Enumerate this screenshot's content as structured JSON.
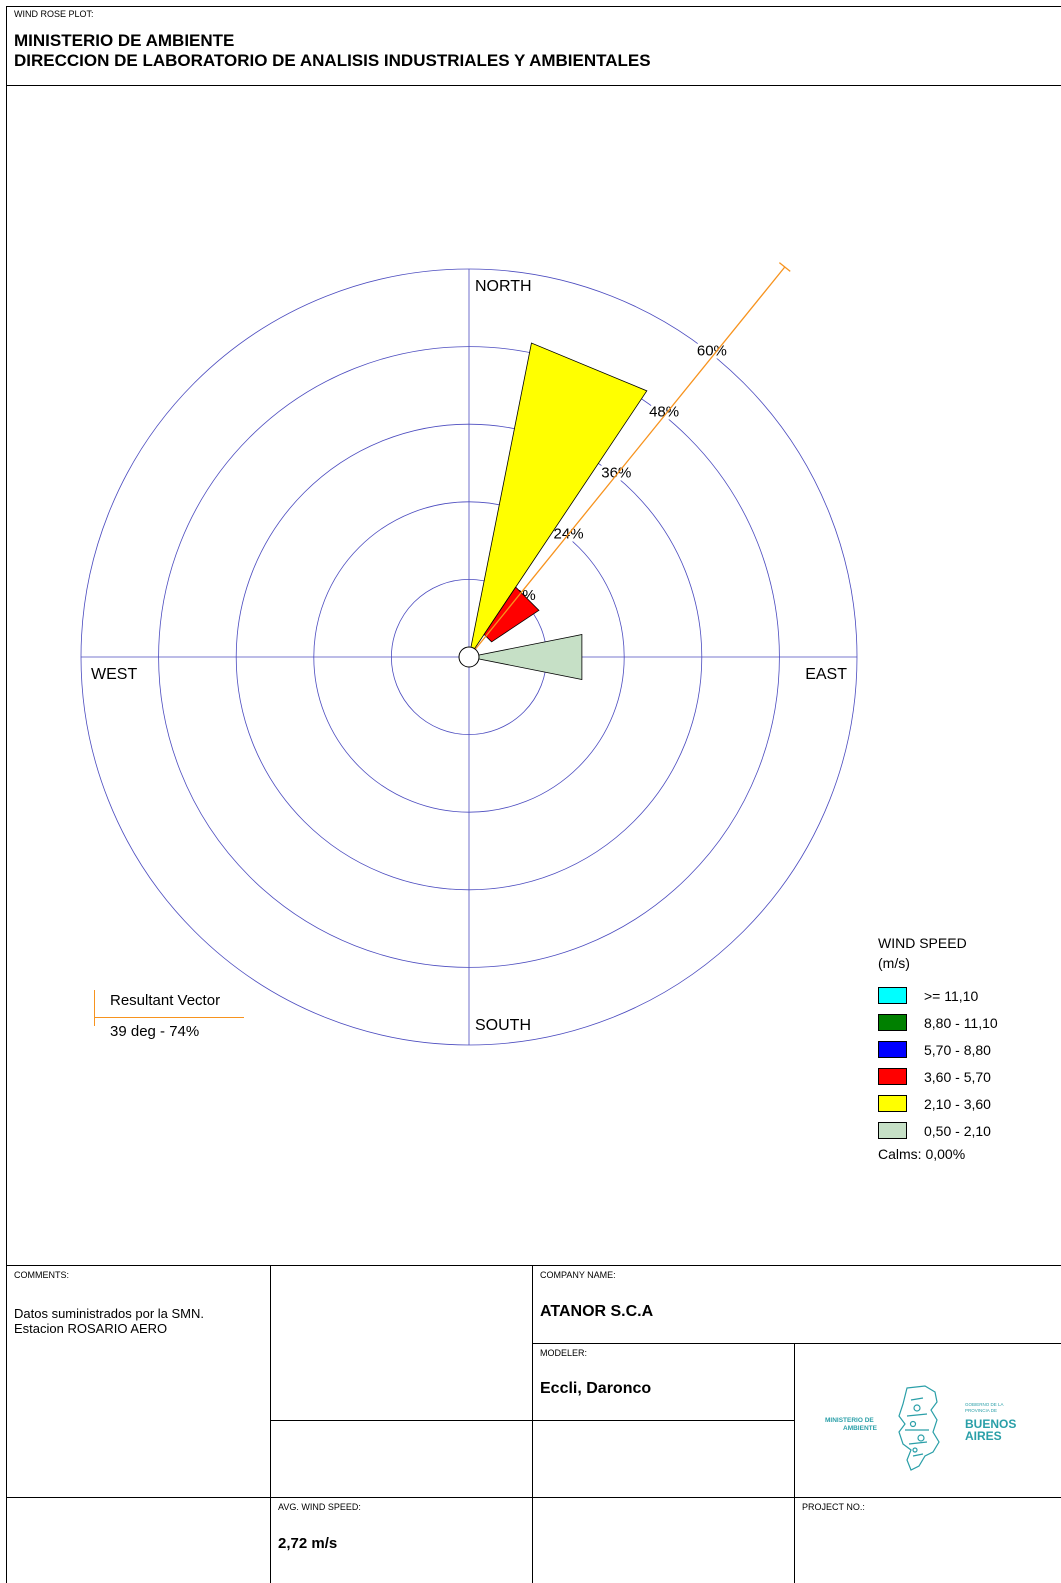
{
  "header": {
    "small_label": "WIND ROSE PLOT:",
    "title_line1": "MINISTERIO DE AMBIENTE",
    "title_line2": "DIRECCION DE LABORATORIO DE ANALISIS INDUSTRIALES Y AMBIENTALES"
  },
  "chart_data": {
    "type": "wind_rose",
    "directions": {
      "north": "NORTH",
      "south": "SOUTH",
      "east": "EAST",
      "west": "WEST"
    },
    "rings": [
      12,
      24,
      36,
      48,
      60
    ],
    "ring_labels": [
      "12%",
      "24%",
      "36%",
      "48%",
      "60%"
    ],
    "ring_label_angle_deg": 38,
    "max_percent": 60,
    "petals": [
      {
        "dir_deg": 22.5,
        "width_deg": 22.5,
        "segments": [
          {
            "bin": "2,10 - 3,60",
            "from": 0,
            "to": 49.5
          }
        ]
      },
      {
        "dir_deg": 45,
        "width_deg": 22.5,
        "segments": [
          {
            "bin": "3,60 - 5,70",
            "from": 4.2,
            "to": 13.0
          }
        ]
      },
      {
        "dir_deg": 90,
        "width_deg": 22.5,
        "segments": [
          {
            "bin": "0,50 - 2,10",
            "from": 0,
            "to": 17.8
          }
        ]
      }
    ],
    "resultant_vector": {
      "direction_deg": 39,
      "percent": 74
    },
    "colors": {
      "ring": "#4b4bbf",
      "axis": "#4b4bbf",
      "vector": "#f7931e",
      "bins": {
        ">= 11,10": "#00ffff",
        "8,80 - 11,10": "#008000",
        "5,70 - 8,80": "#0000ff",
        "3,60 - 5,70": "#ff0000",
        "2,10 - 3,60": "#ffff00",
        "0,50 - 2,10": "#c6e0c6"
      }
    }
  },
  "legend": {
    "title1": "WIND SPEED",
    "title2": "(m/s)",
    "items": [
      {
        "label": ">= 11,10",
        "color": "#00ffff"
      },
      {
        "label": "8,80 - 11,10",
        "color": "#008000"
      },
      {
        "label": "5,70 - 8,80",
        "color": "#0000ff"
      },
      {
        "label": "3,60 - 5,70",
        "color": "#ff0000"
      },
      {
        "label": "2,10 - 3,60",
        "color": "#ffff00"
      },
      {
        "label": "0,50 - 2,10",
        "color": "#c6e0c6"
      }
    ],
    "calms": "Calms: 0,00%"
  },
  "resultant": {
    "title": "Resultant Vector",
    "value": "39 deg - 74%"
  },
  "table": {
    "comments_label": "COMMENTS:",
    "comments_line1": "Datos suministrados por la SMN.",
    "comments_line2": "Estacion ROSARIO AERO",
    "company_label": "COMPANY NAME:",
    "company": "ATANOR S.C.A",
    "modeler_label": "MODELER:",
    "modeler": "Eccli, Daronco",
    "avg_label": "AVG. WIND SPEED:",
    "avg": "2,72 m/s",
    "project_label": "PROJECT NO.:"
  },
  "logo": {
    "left_text1": "MINISTERIO DE",
    "left_text2": "AMBIENTE",
    "right_small1": "GOBIERNO DE LA",
    "right_small2": "PROVINCIA DE",
    "right_big1": "BUENOS",
    "right_big2": "AIRES",
    "color": "#2a9fa8"
  }
}
